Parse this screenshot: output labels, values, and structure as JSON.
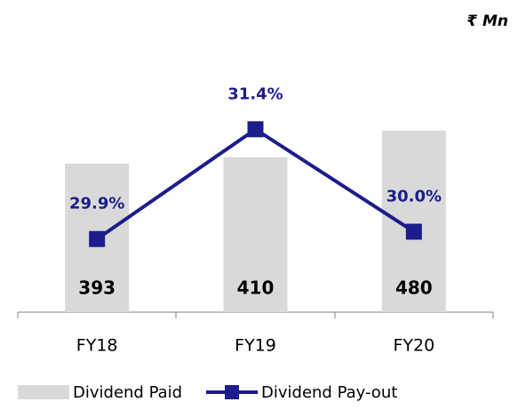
{
  "chart_data": {
    "type": "combo",
    "unit_label": "₹ Mn",
    "categories": [
      "FY18",
      "FY19",
      "FY20"
    ],
    "series": [
      {
        "name": "Dividend Paid",
        "type": "bar",
        "color": "#d9d9d9",
        "values": [
          393,
          410,
          480
        ]
      },
      {
        "name": "Dividend Pay-out",
        "type": "line",
        "axis": "y2",
        "color": "#1c1c8c",
        "values": [
          29.9,
          31.4,
          30.0
        ],
        "value_labels": [
          "29.9%",
          "31.4%",
          "30.0%"
        ]
      }
    ],
    "ylim": [
      0,
      600
    ],
    "y2lim": [
      28.9,
      32.0
    ],
    "grid": false
  }
}
